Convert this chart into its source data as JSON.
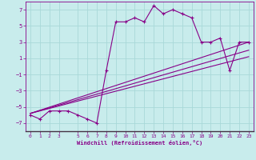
{
  "xlabel": "Windchill (Refroidissement éolien,°C)",
  "bg_color": "#c8ecec",
  "grid_color": "#a8d8d8",
  "line_color": "#880088",
  "xlim": [
    -0.5,
    23.5
  ],
  "ylim": [
    -8,
    8
  ],
  "xticks": [
    0,
    1,
    2,
    3,
    5,
    6,
    7,
    8,
    9,
    10,
    11,
    12,
    13,
    14,
    15,
    16,
    17,
    18,
    19,
    20,
    21,
    22,
    23
  ],
  "yticks": [
    -7,
    -5,
    -3,
    -1,
    1,
    3,
    5,
    7
  ],
  "main_x": [
    0,
    1,
    2,
    3,
    4,
    5,
    6,
    7,
    8,
    9,
    10,
    11,
    12,
    13,
    14,
    15,
    16,
    17,
    18,
    19,
    20,
    21,
    22,
    23
  ],
  "main_y": [
    -6.0,
    -6.5,
    -5.5,
    -5.5,
    -5.5,
    -6.0,
    -6.5,
    -7.0,
    -0.5,
    5.5,
    5.5,
    6.0,
    5.5,
    7.5,
    6.5,
    7.0,
    6.5,
    6.0,
    3.0,
    3.0,
    3.5,
    -0.5,
    3.0,
    3.0
  ],
  "line1_x": [
    0,
    23
  ],
  "line1_y": [
    -5.8,
    3.0
  ],
  "line2_x": [
    0,
    23
  ],
  "line2_y": [
    -5.8,
    2.0
  ],
  "line3_x": [
    0,
    23
  ],
  "line3_y": [
    -5.8,
    1.2
  ]
}
